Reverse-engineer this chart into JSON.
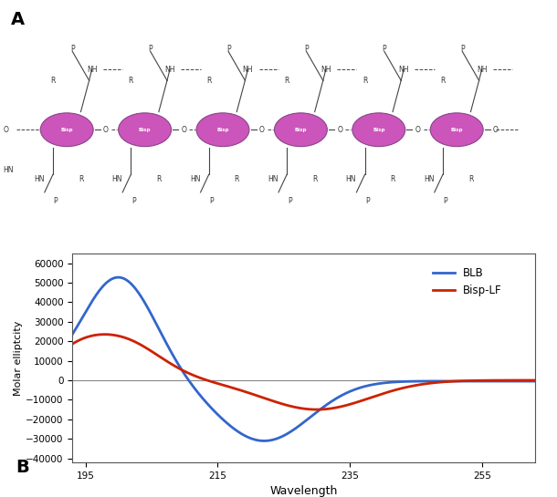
{
  "panel_b": {
    "xlim": [
      193,
      263
    ],
    "ylim": [
      -42000,
      65000
    ],
    "xticks": [
      195,
      215,
      235,
      255
    ],
    "yticks": [
      -40000,
      -30000,
      -20000,
      -10000,
      0,
      10000,
      20000,
      30000,
      40000,
      50000,
      60000
    ],
    "xlabel": "Wavelength",
    "ylabel": "Molar elliptcity",
    "blb_color": "#3366CC",
    "bispLF_color": "#CC2200",
    "legend_labels": [
      "BLB",
      "Bisp-LF"
    ],
    "title_A": "A",
    "title_B": "B"
  }
}
